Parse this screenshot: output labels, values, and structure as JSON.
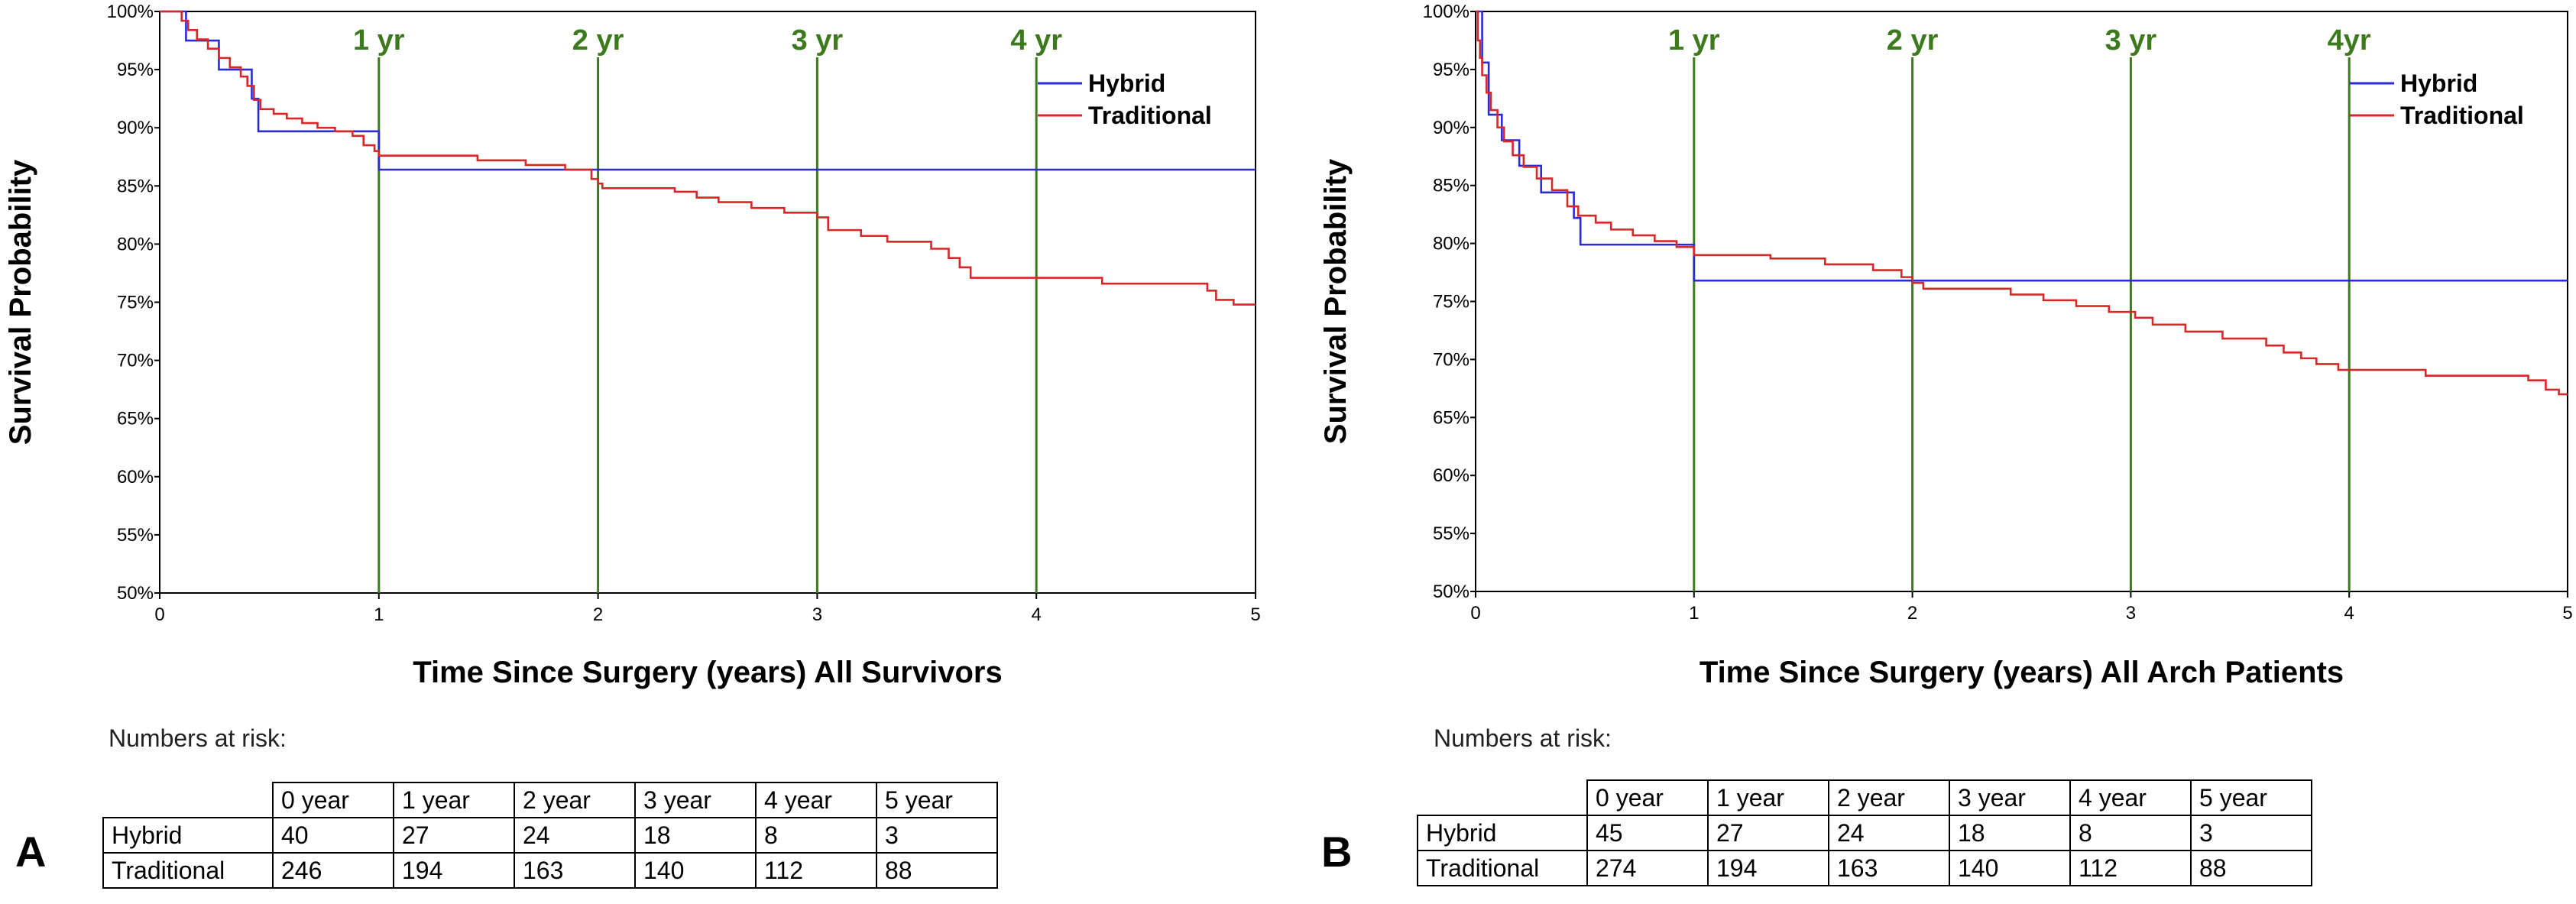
{
  "chart_data": [
    {
      "type": "line",
      "panel_letter": "A",
      "xlabel": "Time Since Surgery (years) All Survivors",
      "ylabel": "Survival Probability",
      "xlim": [
        0,
        5
      ],
      "ylim": [
        50,
        100
      ],
      "x_ticks": [
        "0",
        "1",
        "2",
        "3",
        "4",
        "5"
      ],
      "y_ticks": [
        "50%",
        "55%",
        "60%",
        "65%",
        "70%",
        "75%",
        "80%",
        "85%",
        "90%",
        "95%",
        "100%"
      ],
      "legend_position": "top-right",
      "reference_lines": [
        {
          "x": 1,
          "label": "1 yr"
        },
        {
          "x": 2,
          "label": "2 yr"
        },
        {
          "x": 3,
          "label": "3 yr"
        },
        {
          "x": 4,
          "label": "4 yr"
        }
      ],
      "colors": {
        "hybrid": "#2b2bd6",
        "traditional": "#d62828",
        "reference": "#3d7a1e"
      },
      "series": [
        {
          "name": "Hybrid",
          "step_points": [
            [
              0,
              100
            ],
            [
              0.12,
              97.5
            ],
            [
              0.27,
              95
            ],
            [
              0.42,
              92.5
            ],
            [
              0.45,
              89.7
            ],
            [
              1.0,
              86.4
            ],
            [
              5.0,
              86.4
            ]
          ]
        },
        {
          "name": "Traditional",
          "step_points": [
            [
              0,
              100
            ],
            [
              0.1,
              99.2
            ],
            [
              0.13,
              98.4
            ],
            [
              0.17,
              97.6
            ],
            [
              0.22,
              96.8
            ],
            [
              0.27,
              96.0
            ],
            [
              0.32,
              95.2
            ],
            [
              0.37,
              94.4
            ],
            [
              0.4,
              93.6
            ],
            [
              0.43,
              92.4
            ],
            [
              0.46,
              91.6
            ],
            [
              0.52,
              91.2
            ],
            [
              0.58,
              90.8
            ],
            [
              0.65,
              90.4
            ],
            [
              0.72,
              90.0
            ],
            [
              0.8,
              89.7
            ],
            [
              0.88,
              89.3
            ],
            [
              0.93,
              88.5
            ],
            [
              0.98,
              88.0
            ],
            [
              1.0,
              87.6
            ],
            [
              1.45,
              87.2
            ],
            [
              1.67,
              86.8
            ],
            [
              1.85,
              86.4
            ],
            [
              1.97,
              85.6
            ],
            [
              2.0,
              85.2
            ],
            [
              2.02,
              84.8
            ],
            [
              2.35,
              84.5
            ],
            [
              2.45,
              84.0
            ],
            [
              2.55,
              83.6
            ],
            [
              2.7,
              83.1
            ],
            [
              2.85,
              82.7
            ],
            [
              3.0,
              82.3
            ],
            [
              3.05,
              81.2
            ],
            [
              3.2,
              80.7
            ],
            [
              3.32,
              80.2
            ],
            [
              3.52,
              79.6
            ],
            [
              3.6,
              78.8
            ],
            [
              3.65,
              78.0
            ],
            [
              3.7,
              77.1
            ],
            [
              4.3,
              76.6
            ],
            [
              4.78,
              76.0
            ],
            [
              4.82,
              75.2
            ],
            [
              4.9,
              74.8
            ],
            [
              5.0,
              74.8
            ]
          ]
        }
      ],
      "risk_table": {
        "heading": "Numbers at risk:",
        "columns": [
          "0 year",
          "1 year",
          "2 year",
          "3 year",
          "4 year",
          "5 year"
        ],
        "rows": [
          {
            "label": "Hybrid",
            "values": [
              "40",
              "27",
              "24",
              "18",
              "8",
              "3"
            ]
          },
          {
            "label": "Traditional",
            "values": [
              "246",
              "194",
              "163",
              "140",
              "112",
              "88"
            ]
          }
        ]
      }
    },
    {
      "type": "line",
      "panel_letter": "B",
      "xlabel": "Time Since Surgery (years) All Arch Patients",
      "ylabel": "Survival Probability",
      "xlim": [
        0,
        5
      ],
      "ylim": [
        50,
        100
      ],
      "x_ticks": [
        "0",
        "1",
        "2",
        "3",
        "4",
        "5"
      ],
      "y_ticks": [
        "50%",
        "55%",
        "60%",
        "65%",
        "70%",
        "75%",
        "80%",
        "85%",
        "90%",
        "95%",
        "100%"
      ],
      "legend_position": "top-right",
      "reference_lines": [
        {
          "x": 1,
          "label": "1 yr"
        },
        {
          "x": 2,
          "label": "2 yr"
        },
        {
          "x": 3,
          "label": "3 yr"
        },
        {
          "x": 4,
          "label": "4yr"
        }
      ],
      "colors": {
        "hybrid": "#2b2bd6",
        "traditional": "#d62828",
        "reference": "#3d7a1e"
      },
      "series": [
        {
          "name": "Hybrid",
          "step_points": [
            [
              0,
              100
            ],
            [
              0.03,
              95.6
            ],
            [
              0.06,
              91.1
            ],
            [
              0.12,
              88.9
            ],
            [
              0.2,
              86.7
            ],
            [
              0.3,
              84.4
            ],
            [
              0.45,
              82.2
            ],
            [
              0.48,
              79.9
            ],
            [
              1.0,
              76.8
            ],
            [
              5.0,
              76.8
            ]
          ]
        },
        {
          "name": "Traditional",
          "step_points": [
            [
              0,
              100
            ],
            [
              0.01,
              97.5
            ],
            [
              0.02,
              96.0
            ],
            [
              0.03,
              94.5
            ],
            [
              0.05,
              93.0
            ],
            [
              0.07,
              91.5
            ],
            [
              0.1,
              90.0
            ],
            [
              0.13,
              88.8
            ],
            [
              0.17,
              87.6
            ],
            [
              0.22,
              86.6
            ],
            [
              0.28,
              85.6
            ],
            [
              0.35,
              84.6
            ],
            [
              0.42,
              83.2
            ],
            [
              0.47,
              82.4
            ],
            [
              0.55,
              81.8
            ],
            [
              0.62,
              81.2
            ],
            [
              0.72,
              80.7
            ],
            [
              0.82,
              80.2
            ],
            [
              0.92,
              79.7
            ],
            [
              1.0,
              79.0
            ],
            [
              1.35,
              78.7
            ],
            [
              1.6,
              78.2
            ],
            [
              1.82,
              77.7
            ],
            [
              1.95,
              77.1
            ],
            [
              2.0,
              76.6
            ],
            [
              2.05,
              76.1
            ],
            [
              2.45,
              75.6
            ],
            [
              2.6,
              75.1
            ],
            [
              2.75,
              74.6
            ],
            [
              2.9,
              74.1
            ],
            [
              3.02,
              73.6
            ],
            [
              3.1,
              73.0
            ],
            [
              3.25,
              72.4
            ],
            [
              3.42,
              71.8
            ],
            [
              3.62,
              71.2
            ],
            [
              3.7,
              70.6
            ],
            [
              3.78,
              70.1
            ],
            [
              3.85,
              69.6
            ],
            [
              3.95,
              69.1
            ],
            [
              4.35,
              68.6
            ],
            [
              4.82,
              68.2
            ],
            [
              4.9,
              67.4
            ],
            [
              4.96,
              67.0
            ],
            [
              5.0,
              67.0
            ]
          ]
        }
      ],
      "risk_table": {
        "heading": "Numbers at risk:",
        "columns": [
          "0 year",
          "1 year",
          "2 year",
          "3 year",
          "4 year",
          "5 year"
        ],
        "rows": [
          {
            "label": "Hybrid",
            "values": [
              "45",
              "27",
              "24",
              "18",
              "8",
              "3"
            ]
          },
          {
            "label": "Traditional",
            "values": [
              "274",
              "194",
              "163",
              "140",
              "112",
              "88"
            ]
          }
        ]
      }
    }
  ]
}
